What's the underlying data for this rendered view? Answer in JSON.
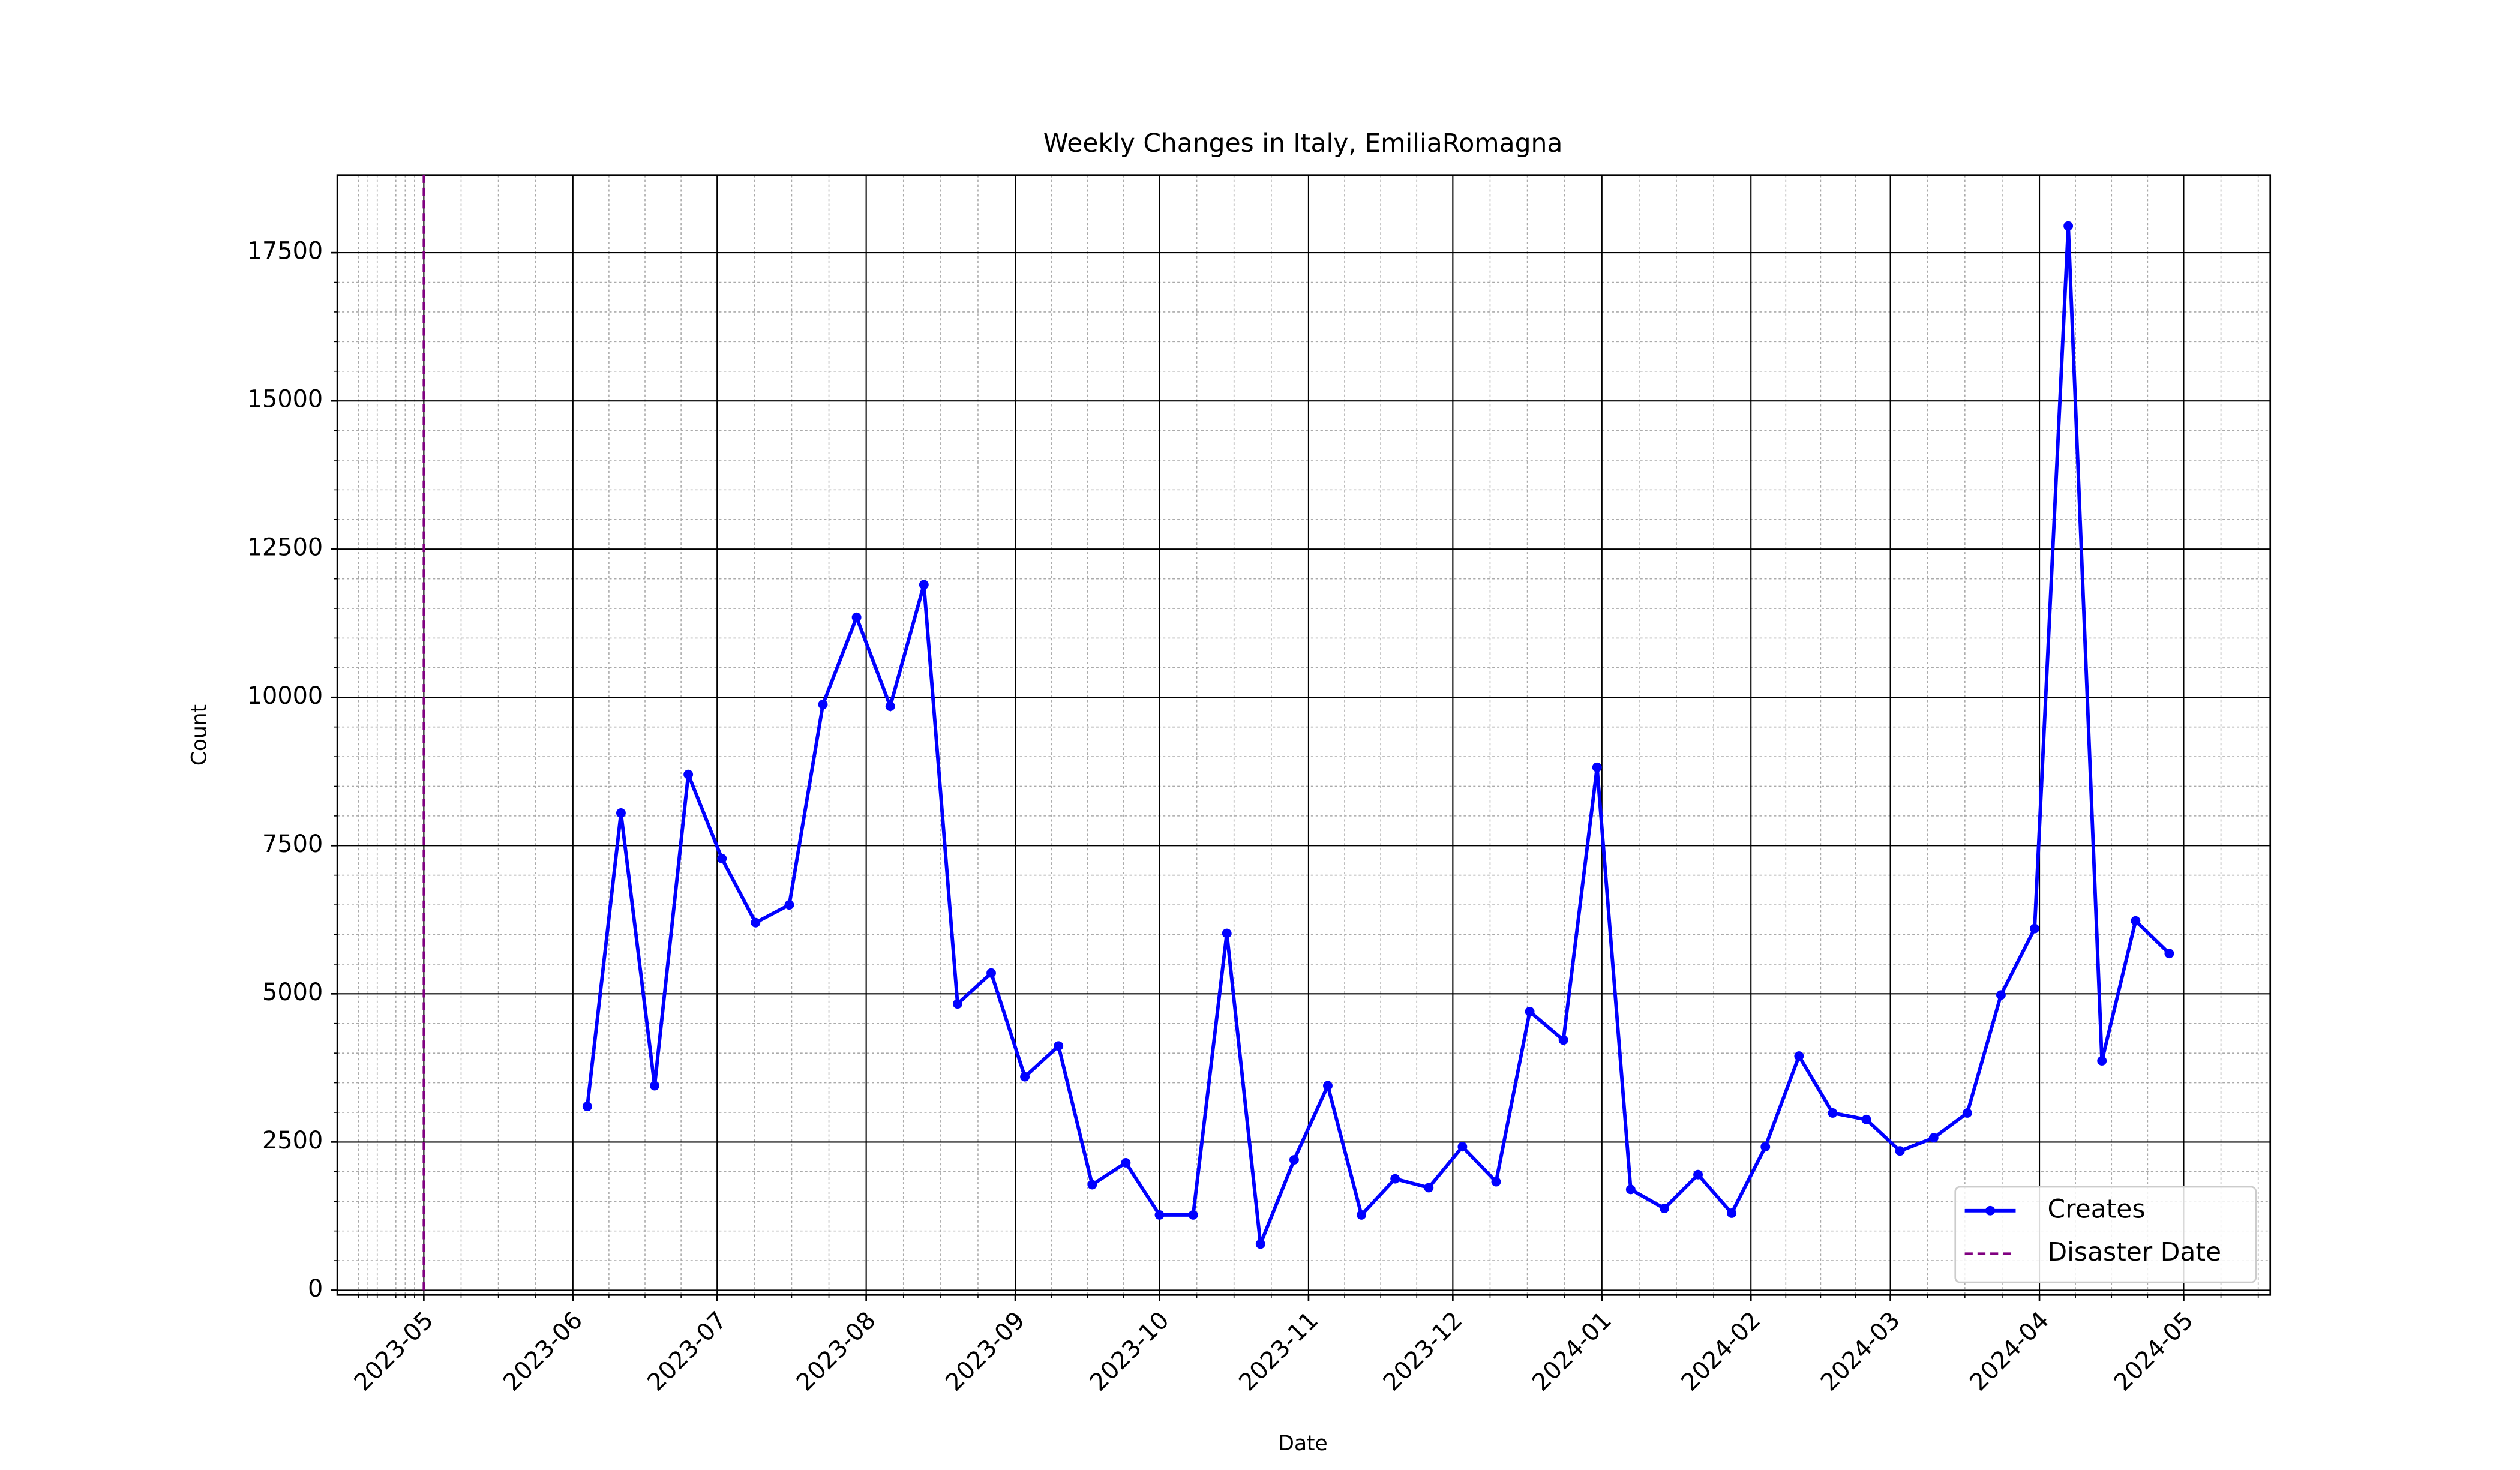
{
  "chart_data": {
    "type": "line",
    "title": "Weekly Changes in Italy, EmiliaRomagna",
    "x_label": "Date",
    "y_label": "Count",
    "x": [
      "2023-06-04",
      "2023-06-11",
      "2023-06-18",
      "2023-06-25",
      "2023-07-02",
      "2023-07-09",
      "2023-07-16",
      "2023-07-23",
      "2023-07-30",
      "2023-08-06",
      "2023-08-13",
      "2023-08-20",
      "2023-08-27",
      "2023-09-03",
      "2023-09-10",
      "2023-09-17",
      "2023-09-24",
      "2023-10-01",
      "2023-10-08",
      "2023-10-15",
      "2023-10-22",
      "2023-10-29",
      "2023-11-05",
      "2023-11-12",
      "2023-11-19",
      "2023-11-26",
      "2023-12-03",
      "2023-12-10",
      "2023-12-17",
      "2023-12-24",
      "2023-12-31",
      "2024-01-07",
      "2024-01-14",
      "2024-01-21",
      "2024-01-28",
      "2024-02-04",
      "2024-02-11",
      "2024-02-18",
      "2024-02-25",
      "2024-03-03",
      "2024-03-10",
      "2024-03-17",
      "2024-03-24",
      "2024-03-31",
      "2024-04-07",
      "2024-04-14",
      "2024-04-21",
      "2024-04-28"
    ],
    "series": [
      {
        "name": "Creates",
        "color": "#0000ff",
        "values": [
          3100,
          8050,
          3450,
          8700,
          7280,
          6200,
          6500,
          9880,
          11350,
          9850,
          11900,
          4830,
          5350,
          3600,
          4120,
          1780,
          2150,
          1270,
          1270,
          6020,
          780,
          2200,
          3450,
          1270,
          1880,
          1730,
          2420,
          1830,
          4700,
          4220,
          8820,
          1700,
          1380,
          1950,
          1300,
          2420,
          3950,
          2990,
          2880,
          2350,
          2570,
          2990,
          4980,
          6100,
          17950,
          3870,
          6230,
          5680
        ]
      }
    ],
    "disaster": {
      "name": "Disaster Date",
      "date": "2023-05-01",
      "color": "#800080"
    },
    "xlim": [
      "2023-04-13",
      "2024-05-19"
    ],
    "xticks": [
      {
        "value": "2023-05-01",
        "label": "2023-05"
      },
      {
        "value": "2023-06-01",
        "label": "2023-06"
      },
      {
        "value": "2023-07-01",
        "label": "2023-07"
      },
      {
        "value": "2023-08-01",
        "label": "2023-08"
      },
      {
        "value": "2023-09-01",
        "label": "2023-09"
      },
      {
        "value": "2023-10-01",
        "label": "2023-10"
      },
      {
        "value": "2023-11-01",
        "label": "2023-11"
      },
      {
        "value": "2023-12-01",
        "label": "2023-12"
      },
      {
        "value": "2024-01-01",
        "label": "2024-01"
      },
      {
        "value": "2024-02-01",
        "label": "2024-02"
      },
      {
        "value": "2024-03-01",
        "label": "2024-03"
      },
      {
        "value": "2024-04-01",
        "label": "2024-04"
      },
      {
        "value": "2024-05-01",
        "label": "2024-05"
      }
    ],
    "ylim": [
      -80,
      18810
    ],
    "yticks": [
      0,
      2500,
      5000,
      7500,
      10000,
      12500,
      15000,
      17500
    ],
    "grid": true,
    "minor_grid": true,
    "legend": "lower right"
  }
}
